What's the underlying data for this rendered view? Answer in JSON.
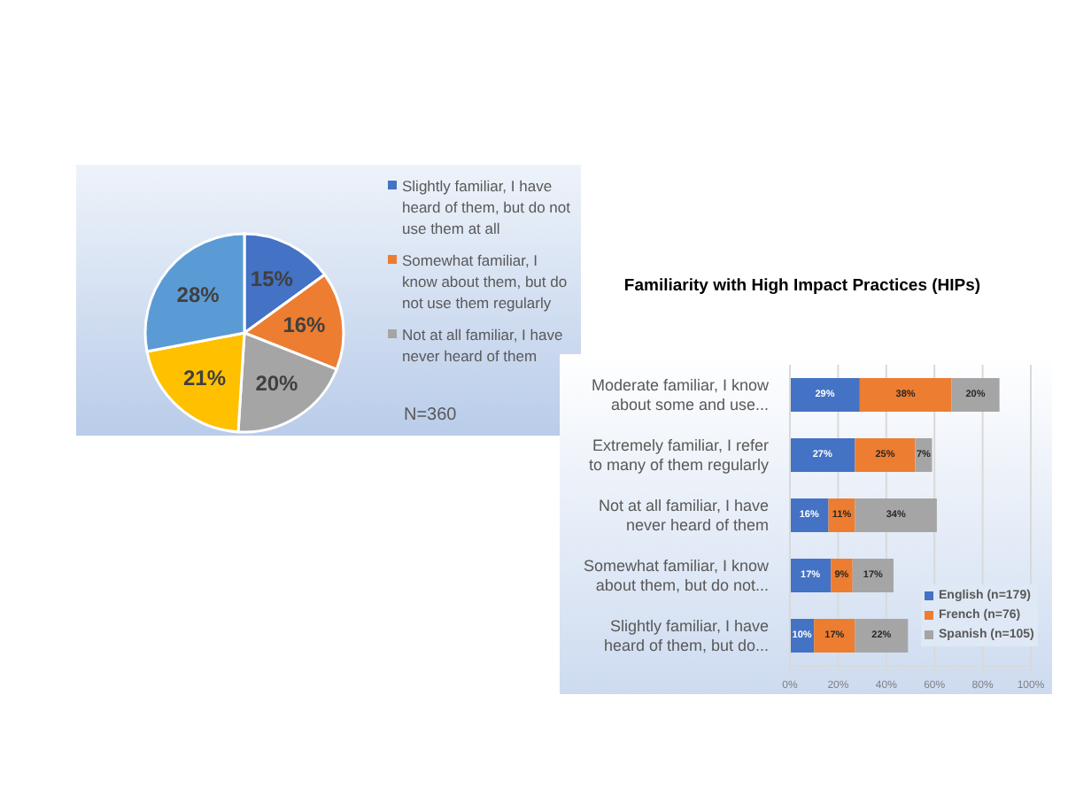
{
  "chart_data": [
    {
      "type": "pie",
      "categories": [
        "Slightly familiar, I have heard of them, but do not use them at all",
        "Somewhat familiar, I know about them, but do not use them regularly",
        "Not at all familiar, I have never heard of them",
        null,
        null
      ],
      "values": [
        15,
        16,
        20,
        21,
        28
      ],
      "value_labels": [
        "15%",
        "16%",
        "20%",
        "21%",
        "28%"
      ],
      "colors": [
        "#4472c4",
        "#ed7d31",
        "#a5a5a5",
        "#ffc000",
        "#5b9bd5"
      ],
      "legend": "right",
      "annotations": [
        "N=360"
      ]
    },
    {
      "type": "bar",
      "orientation": "horizontal",
      "stacked": true,
      "title": "Familiarity with High Impact Practices (HIPs)",
      "categories": [
        "Moderate familiar, I know about some and use...",
        "Extremely familiar, I refer to many of them regularly",
        "Not at all familiar, I have never heard of them",
        "Somewhat familiar, I know about them, but do not...",
        "Slightly familiar, I have heard of them, but do..."
      ],
      "series": [
        {
          "name": "English (n=179)",
          "color": "#4472c4",
          "values": [
            29,
            27,
            16,
            17,
            10
          ],
          "value_labels": [
            "29%",
            "27%",
            "16%",
            "17%",
            "10%"
          ]
        },
        {
          "name": "French (n=76)",
          "color": "#ed7d31",
          "values": [
            38,
            25,
            11,
            9,
            17
          ],
          "value_labels": [
            "38%",
            "25%",
            "11%",
            "9%",
            "17%"
          ]
        },
        {
          "name": "Spanish (n=105)",
          "color": "#a5a5a5",
          "values": [
            20,
            7,
            34,
            17,
            22
          ],
          "value_labels": [
            "20%",
            "7%",
            "34%",
            "17%",
            "22%"
          ]
        }
      ],
      "xlim": [
        0,
        100
      ],
      "xticks": [
        {
          "value": 0,
          "label": "0%"
        },
        {
          "value": 20,
          "label": "20%"
        },
        {
          "value": 40,
          "label": "40%"
        },
        {
          "value": 60,
          "label": "60%"
        },
        {
          "value": 80,
          "label": "80%"
        },
        {
          "value": 100,
          "label": "100%"
        }
      ],
      "grid": "x",
      "legend": "right"
    }
  ]
}
